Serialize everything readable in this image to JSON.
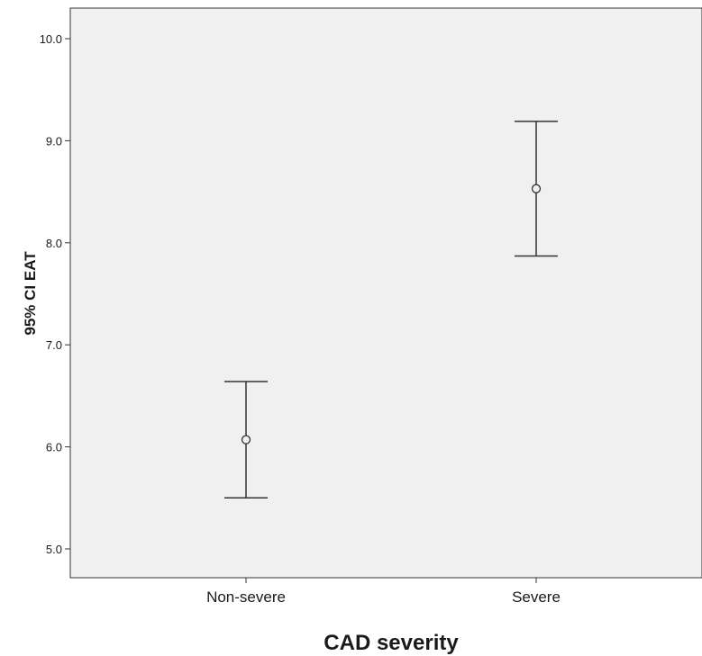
{
  "chart_data": {
    "type": "errorbar",
    "xlabel": "CAD severity",
    "ylabel": "95% CI EAT",
    "categories": [
      "Non-severe",
      "Severe"
    ],
    "means": [
      6.07,
      8.53
    ],
    "ci_lower": [
      5.5,
      7.87
    ],
    "ci_upper": [
      6.64,
      9.19
    ],
    "ylim": [
      4.7,
      10.3
    ],
    "yticks": [
      "5.0",
      "6.0",
      "7.0",
      "8.0",
      "9.0",
      "10.0"
    ],
    "grid": false,
    "colors": {
      "plot_background": "#f0f0f0",
      "line": "#333333"
    }
  }
}
